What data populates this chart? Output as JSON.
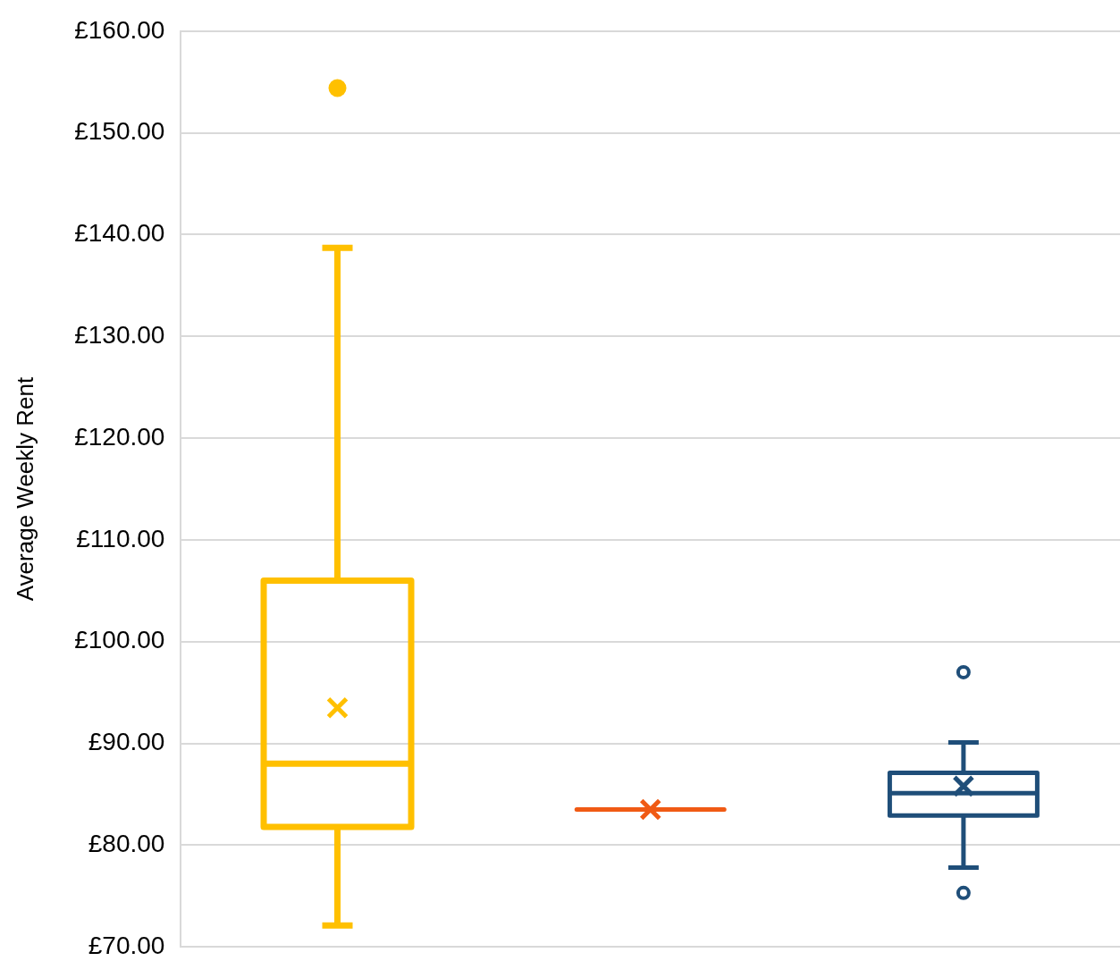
{
  "chart_data": {
    "type": "box",
    "ylabel": "Average Weekly Rent",
    "categories": [
      null,
      null,
      null
    ],
    "colors": [
      "#ffc000",
      "#f05a14",
      "#1f4e79"
    ],
    "boxes": [
      {
        "low": 72.1,
        "q1": 81.8,
        "median": 88.0,
        "q3": 106.0,
        "high": 138.7,
        "mean": 93.5,
        "outliers": [
          154.4
        ]
      },
      {
        "low": 83.5,
        "q1": 83.5,
        "median": 83.5,
        "q3": 83.5,
        "high": 83.5,
        "mean": 83.5
      },
      {
        "low": 77.8,
        "q1": 82.9,
        "median": 85.1,
        "q3": 87.1,
        "high": 90.1,
        "mean": 85.8,
        "outliers": [
          97.0,
          75.3
        ]
      }
    ],
    "ylim": [
      70,
      160
    ],
    "yticks": [
      {
        "value": 70,
        "label": "£70.00"
      },
      {
        "value": 80,
        "label": "£80.00"
      },
      {
        "value": 90,
        "label": "£90.00"
      },
      {
        "value": 100,
        "label": "£100.00"
      },
      {
        "value": 110,
        "label": "£110.00"
      },
      {
        "value": 120,
        "label": "£120.00"
      },
      {
        "value": 130,
        "label": "£130.00"
      },
      {
        "value": 140,
        "label": "£140.00"
      },
      {
        "value": 150,
        "label": "£150.00"
      },
      {
        "value": 160,
        "label": "£160.00"
      }
    ],
    "grid": "y"
  }
}
